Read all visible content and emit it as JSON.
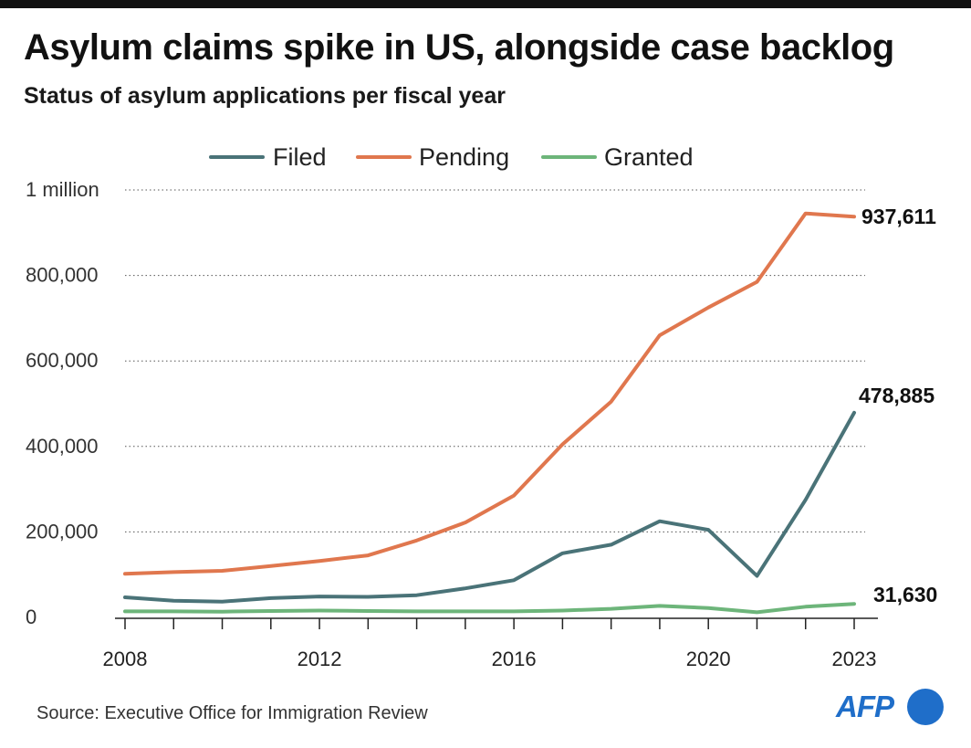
{
  "header": {
    "title": "Asylum claims spike in US, alongside case backlog",
    "subtitle": "Status of asylum applications per fiscal year"
  },
  "footer": {
    "source": "Source: Executive Office for Immigration Review",
    "logo_text": "AFP"
  },
  "colors": {
    "filed": "#4a7378",
    "pending": "#e0774e",
    "granted": "#6db57a",
    "brand": "#1f6ec9",
    "text": "#1a1a1a"
  },
  "chart_data": {
    "type": "line",
    "title": "Asylum claims spike in US, alongside case backlog",
    "subtitle": "Status of asylum applications per fiscal year",
    "xlabel": "",
    "ylabel": "",
    "x": [
      2008,
      2009,
      2010,
      2011,
      2012,
      2013,
      2014,
      2015,
      2016,
      2017,
      2018,
      2019,
      2020,
      2021,
      2022,
      2023
    ],
    "x_tick_labels": [
      {
        "value": 2008,
        "label": "2008"
      },
      {
        "value": 2012,
        "label": "2012"
      },
      {
        "value": 2016,
        "label": "2016"
      },
      {
        "value": 2020,
        "label": "2020"
      },
      {
        "value": 2023,
        "label": "2023"
      }
    ],
    "y_ticks": [
      {
        "value": 0,
        "label": "0"
      },
      {
        "value": 200000,
        "label": "200,000"
      },
      {
        "value": 400000,
        "label": "400,000"
      },
      {
        "value": 600000,
        "label": "600,000"
      },
      {
        "value": 800000,
        "label": "800,000"
      },
      {
        "value": 1000000,
        "label": "1 million"
      }
    ],
    "ylim": [
      0,
      1000000
    ],
    "xlim": [
      2008,
      2023
    ],
    "grid": "dotted horizontal",
    "legend_position": "top-center",
    "series": [
      {
        "key": "filed",
        "name": "Filed",
        "values": [
          47000,
          39000,
          37000,
          45000,
          49000,
          48000,
          52000,
          68000,
          87000,
          150000,
          170000,
          225000,
          205000,
          97000,
          275000,
          478885
        ],
        "end_label": "478,885"
      },
      {
        "key": "pending",
        "name": "Pending",
        "values": [
          102000,
          106000,
          109000,
          120000,
          132000,
          145000,
          180000,
          222000,
          285000,
          405000,
          505000,
          660000,
          725000,
          785000,
          945000,
          937611
        ],
        "end_label": "937,611"
      },
      {
        "key": "granted",
        "name": "Granted",
        "values": [
          14000,
          14000,
          13500,
          15000,
          16000,
          15000,
          14000,
          14000,
          14000,
          16000,
          20000,
          27000,
          22000,
          12000,
          25000,
          31630
        ],
        "end_label": "31,630"
      }
    ]
  }
}
